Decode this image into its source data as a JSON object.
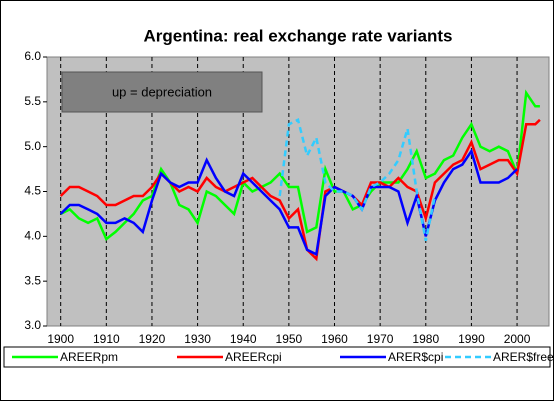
{
  "chart_data": {
    "type": "line",
    "title": "Argentina: real exchange rate variants",
    "annotation": "up = depreciation",
    "x": [
      1900,
      1902,
      1904,
      1906,
      1908,
      1910,
      1912,
      1914,
      1916,
      1918,
      1920,
      1922,
      1924,
      1926,
      1928,
      1930,
      1932,
      1934,
      1936,
      1938,
      1940,
      1942,
      1944,
      1946,
      1948,
      1950,
      1952,
      1954,
      1956,
      1958,
      1960,
      1962,
      1964,
      1966,
      1968,
      1970,
      1972,
      1974,
      1976,
      1978,
      1980,
      1982,
      1984,
      1986,
      1988,
      1990,
      1992,
      1994,
      1996,
      1998,
      2000,
      2002,
      2004,
      2005
    ],
    "series": [
      {
        "name": "AREERpm",
        "color": "#00ff00",
        "dashed": false,
        "values": [
          4.25,
          4.3,
          4.2,
          4.15,
          4.2,
          3.97,
          4.05,
          4.15,
          4.25,
          4.4,
          4.45,
          4.75,
          4.6,
          4.35,
          4.3,
          4.15,
          4.5,
          4.45,
          4.35,
          4.25,
          4.6,
          4.5,
          4.55,
          4.6,
          4.7,
          4.55,
          4.55,
          4.05,
          4.1,
          4.75,
          4.5,
          4.5,
          4.3,
          4.35,
          4.5,
          4.6,
          4.6,
          4.6,
          4.75,
          4.95,
          4.65,
          4.7,
          4.85,
          4.9,
          5.1,
          5.25,
          5.0,
          4.95,
          5.0,
          4.95,
          4.7,
          5.6,
          5.45,
          5.45
        ]
      },
      {
        "name": "AREERcpi",
        "color": "#ff0000",
        "dashed": false,
        "values": [
          4.45,
          4.55,
          4.55,
          4.5,
          4.45,
          4.35,
          4.35,
          4.4,
          4.45,
          4.45,
          4.55,
          4.7,
          4.6,
          4.5,
          4.55,
          4.5,
          4.65,
          4.55,
          4.5,
          4.55,
          4.6,
          4.65,
          4.55,
          4.45,
          4.4,
          4.2,
          4.3,
          3.85,
          3.75,
          4.5,
          4.55,
          4.5,
          4.45,
          4.35,
          4.6,
          4.6,
          4.55,
          4.65,
          4.55,
          4.5,
          4.2,
          4.6,
          4.7,
          4.8,
          4.85,
          5.05,
          4.75,
          4.8,
          4.85,
          4.85,
          4.7,
          5.25,
          5.25,
          5.3
        ]
      },
      {
        "name": "ARER$cpi",
        "color": "#0000ff",
        "dashed": false,
        "values": [
          4.25,
          4.35,
          4.35,
          4.3,
          4.25,
          4.15,
          4.15,
          4.2,
          4.15,
          4.05,
          4.4,
          4.7,
          4.6,
          4.55,
          4.6,
          4.6,
          4.85,
          4.65,
          4.5,
          4.45,
          4.7,
          4.6,
          4.5,
          4.4,
          4.3,
          4.1,
          4.1,
          3.85,
          3.8,
          4.45,
          4.55,
          4.5,
          4.45,
          4.3,
          4.55,
          4.55,
          4.55,
          4.5,
          4.15,
          4.45,
          4.0,
          4.4,
          4.6,
          4.75,
          4.8,
          4.95,
          4.6,
          4.6,
          4.6,
          4.65,
          4.75,
          null,
          null,
          null
        ]
      },
      {
        "name": "ARER$free",
        "color": "#33ccff",
        "dashed": true,
        "values": [
          null,
          null,
          null,
          null,
          null,
          null,
          null,
          null,
          null,
          null,
          null,
          null,
          null,
          null,
          null,
          null,
          null,
          null,
          null,
          null,
          null,
          null,
          null,
          null,
          4.45,
          5.25,
          5.3,
          4.9,
          5.1,
          4.6,
          4.5,
          4.5,
          4.45,
          4.3,
          4.55,
          4.6,
          4.7,
          4.85,
          5.2,
          4.5,
          3.95,
          4.45,
          null,
          null,
          null,
          null,
          null,
          null,
          null,
          null,
          null,
          null,
          null,
          null
        ]
      }
    ],
    "xlim": [
      1897,
      2007
    ],
    "xticks": [
      1900,
      1910,
      1920,
      1930,
      1940,
      1950,
      1960,
      1970,
      1980,
      1990,
      2000
    ],
    "ylim": [
      3.0,
      6.0
    ],
    "yticks": [
      {
        "value": 3,
        "label": "3.0"
      },
      3.5,
      {
        "value": 4,
        "label": "4.0"
      },
      4.5,
      {
        "value": 5,
        "label": "5.0"
      },
      5.5,
      {
        "value": 6,
        "label": "6.0"
      }
    ],
    "grid": true,
    "legend": "bottom"
  }
}
